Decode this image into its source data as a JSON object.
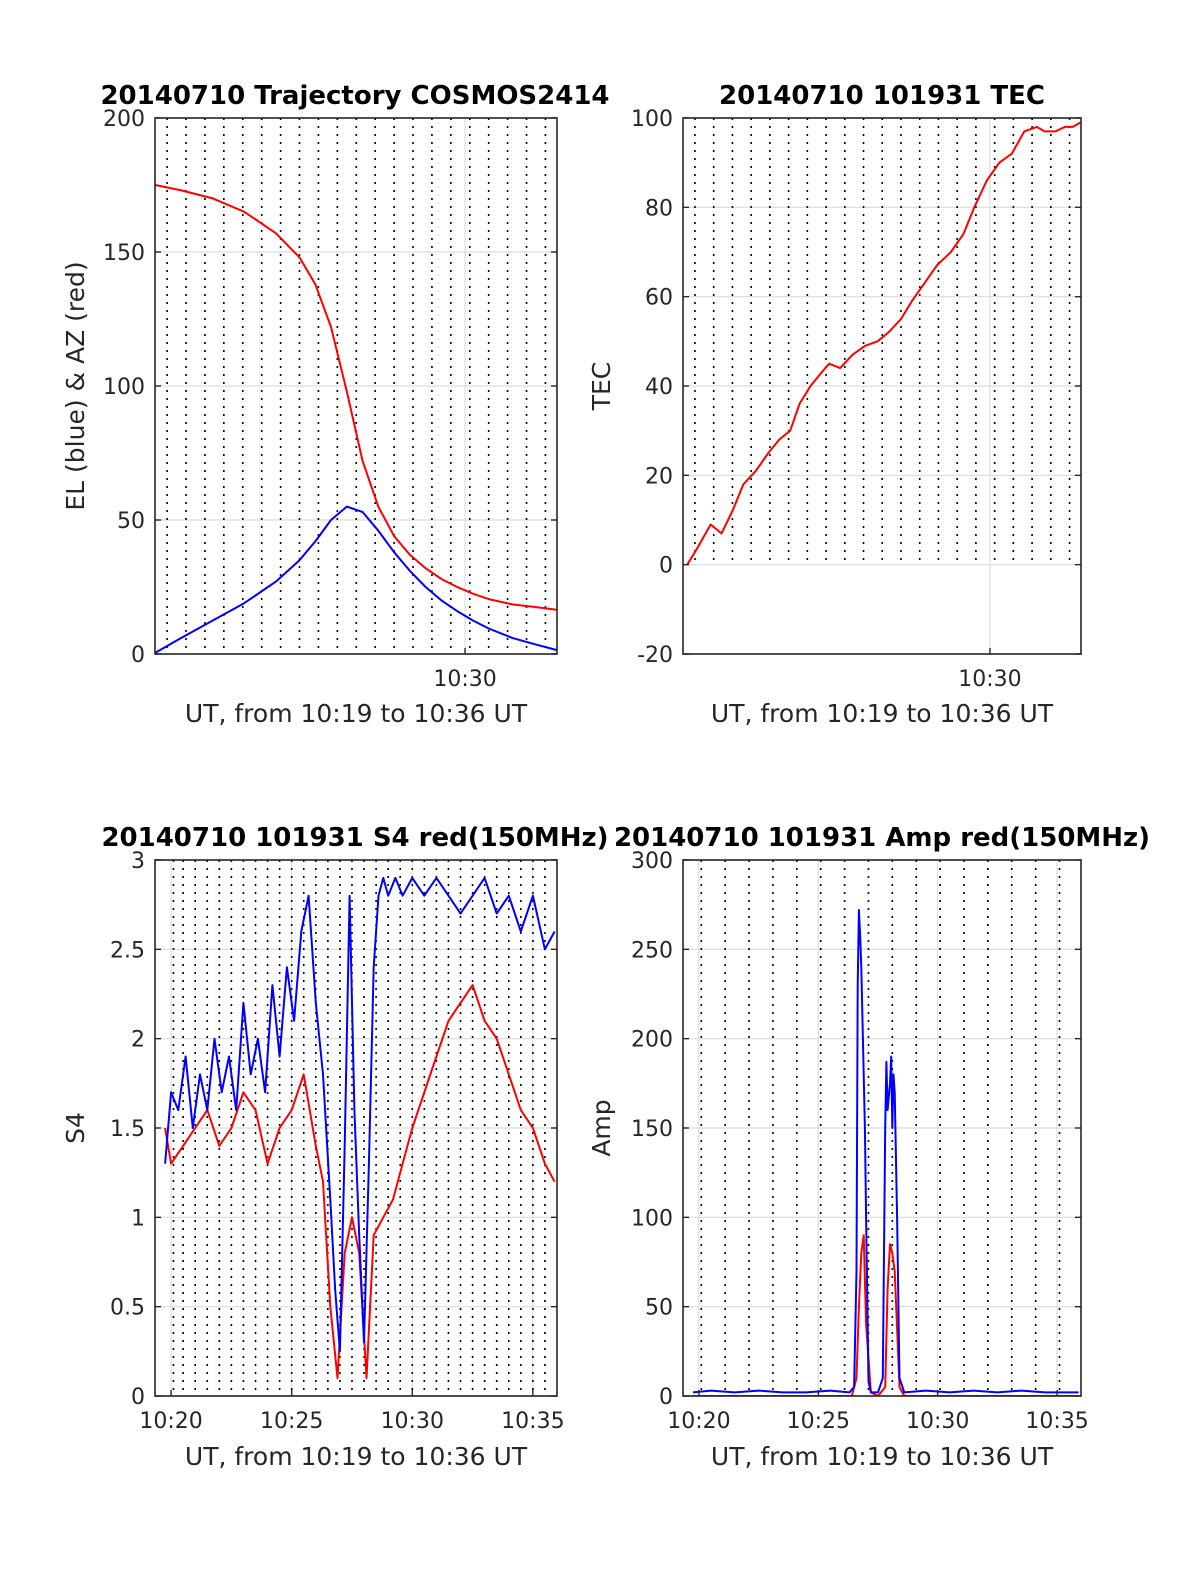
{
  "colors": {
    "red": "#ff0000",
    "blue": "#0000ff",
    "grid": "#dcdcdc",
    "dotted": "#000000",
    "axis": "#262626"
  },
  "chart_data": [
    {
      "id": "trajectory",
      "type": "line",
      "title": "20140710 Trajectory COSMOS2414",
      "xlabel": "UT, from 10:19 to 10:36 UT",
      "ylabel": "EL (blue) & AZ (red)",
      "xlim": [
        10.3333,
        35.8333
      ],
      "ylim": [
        0,
        200
      ],
      "yticks": [
        0,
        50,
        100,
        150,
        200
      ],
      "ytick_labels": [
        "0",
        "50",
        "100",
        "150",
        "200"
      ],
      "xticks": [
        30
      ],
      "xtick_labels": [
        "10:30"
      ],
      "grid": true,
      "dotted_vlines": [
        11.1,
        12.3,
        13.5,
        14.7,
        15.9,
        17.1,
        18.3,
        19.5,
        20.7,
        21.9,
        23.1,
        24.3,
        25.5,
        26.7,
        27.9,
        29.1,
        30.3,
        31.5,
        32.7,
        33.9,
        35.1
      ],
      "series": [
        {
          "color": "red",
          "x": [
            10.35,
            12.0,
            14.0,
            16.0,
            18.0,
            19.5,
            20.5,
            21.5,
            22.5,
            23.5,
            24.5,
            25.5,
            26.5,
            27.5,
            28.5,
            29.5,
            30.5,
            31.5,
            33.0,
            34.5,
            35.8
          ],
          "y": [
            175,
            173,
            170,
            165,
            157,
            148,
            138,
            122,
            98,
            72,
            55,
            44,
            37,
            32,
            28,
            25,
            22.5,
            20.5,
            18.5,
            17.5,
            16.5
          ]
        },
        {
          "color": "blue",
          "x": [
            10.35,
            12.0,
            14.0,
            16.0,
            18.0,
            19.5,
            20.5,
            21.5,
            22.5,
            23.5,
            24.5,
            25.5,
            26.5,
            27.5,
            28.5,
            29.5,
            30.5,
            31.5,
            33.0,
            34.5,
            35.8
          ],
          "y": [
            0.5,
            6,
            12.5,
            19,
            27,
            35,
            42,
            50,
            55,
            53,
            46,
            38,
            31,
            25,
            20,
            16,
            12.5,
            9.5,
            6,
            3.5,
            1.5
          ]
        }
      ]
    },
    {
      "id": "tec",
      "type": "line",
      "title": "20140710 101931 TEC",
      "xlabel": "UT, from 10:19 to 10:36 UT",
      "ylabel": "TEC",
      "xlim": [
        10.3333,
        35.8333
      ],
      "ylim": [
        -20,
        100
      ],
      "yticks": [
        -20,
        0,
        20,
        40,
        60,
        80,
        100
      ],
      "ytick_labels": [
        "-20",
        "0",
        "20",
        "40",
        "60",
        "80",
        "100"
      ],
      "xticks": [
        30
      ],
      "xtick_labels": [
        "10:30"
      ],
      "grid": true,
      "dotted_vlines": [
        11.1,
        12.3,
        13.5,
        14.7,
        15.9,
        17.1,
        18.3,
        19.5,
        20.7,
        21.9,
        23.1,
        24.3,
        25.5,
        26.7,
        27.9,
        29.1,
        30.3,
        31.5,
        32.7,
        33.9,
        35.1
      ],
      "dotted_ymin": 0,
      "series": [
        {
          "color": "red",
          "x": [
            10.6,
            11.3,
            12.1,
            12.8,
            13.5,
            14.2,
            15.0,
            15.8,
            16.5,
            17.2,
            17.8,
            18.5,
            19.2,
            19.7,
            20.4,
            21.2,
            22.0,
            22.8,
            23.5,
            24.3,
            25.0,
            25.8,
            26.6,
            27.5,
            28.3,
            29.0,
            29.8,
            30.6,
            31.4,
            32.2,
            33.0,
            33.5,
            34.2,
            34.8,
            35.3,
            35.8
          ],
          "y": [
            0,
            4,
            9,
            7,
            12,
            18,
            21,
            25,
            28,
            30,
            36,
            40,
            43,
            45,
            44,
            47,
            49,
            50,
            52,
            55,
            59,
            63,
            67,
            70,
            74,
            80,
            86,
            90,
            92,
            97,
            98,
            97,
            97,
            98,
            98,
            99
          ]
        }
      ]
    },
    {
      "id": "s4",
      "type": "line",
      "title": "20140710 101931 S4 red(150MHz)",
      "xlabel": "UT, from 10:19 to 10:36 UT",
      "ylabel": "S4",
      "xlim": [
        19.3333,
        36.0
      ],
      "ylim": [
        0,
        3
      ],
      "yticks": [
        0,
        0.5,
        1,
        1.5,
        2,
        2.5,
        3
      ],
      "ytick_labels": [
        "0",
        "0.5",
        "1",
        "1.5",
        "2",
        "2.5",
        "3"
      ],
      "xticks": [
        20,
        25,
        30,
        35
      ],
      "xtick_labels": [
        "10:20",
        "10:25",
        "10:30",
        "10:35"
      ],
      "grid": true,
      "dotted_vlines": [
        20.1,
        20.5,
        21.0,
        21.5,
        22.0,
        22.5,
        23.0,
        23.5,
        24.0,
        24.5,
        25.0,
        25.5,
        26.0,
        26.5,
        27.0,
        27.5,
        28.0,
        28.5,
        29.0,
        29.5,
        30.0,
        30.5,
        31.0,
        31.5,
        32.0,
        32.5,
        33.0,
        33.5,
        34.0,
        34.5,
        35.0,
        35.5
      ],
      "series": [
        {
          "color": "red",
          "x": [
            19.75,
            20.0,
            20.5,
            21.0,
            21.5,
            22.0,
            22.5,
            23.0,
            23.5,
            24.0,
            24.5,
            25.0,
            25.5,
            26.0,
            26.3,
            26.6,
            26.9,
            27.2,
            27.5,
            27.8,
            28.1,
            28.4,
            28.8,
            29.2,
            29.6,
            30.0,
            30.5,
            31.0,
            31.5,
            32.0,
            32.5,
            33.0,
            33.5,
            34.0,
            34.5,
            35.0,
            35.5,
            35.9
          ],
          "y": [
            1.5,
            1.3,
            1.4,
            1.5,
            1.6,
            1.4,
            1.5,
            1.7,
            1.6,
            1.3,
            1.5,
            1.6,
            1.8,
            1.4,
            1.2,
            0.5,
            0.1,
            0.8,
            1.0,
            0.8,
            0.1,
            0.9,
            1.0,
            1.1,
            1.3,
            1.5,
            1.7,
            1.9,
            2.1,
            2.2,
            2.3,
            2.1,
            2.0,
            1.8,
            1.6,
            1.5,
            1.3,
            1.2
          ]
        },
        {
          "color": "blue",
          "x": [
            19.75,
            20.0,
            20.3,
            20.6,
            20.9,
            21.2,
            21.5,
            21.8,
            22.1,
            22.4,
            22.7,
            23.0,
            23.3,
            23.6,
            23.9,
            24.2,
            24.5,
            24.8,
            25.1,
            25.4,
            25.7,
            26.0,
            26.3,
            26.6,
            26.8,
            27.0,
            27.2,
            27.4,
            27.6,
            27.8,
            28.0,
            28.2,
            28.4,
            28.6,
            28.8,
            29.0,
            29.3,
            29.6,
            30.0,
            30.5,
            31.0,
            31.5,
            32.0,
            32.5,
            33.0,
            33.5,
            34.0,
            34.5,
            35.0,
            35.5,
            35.9
          ],
          "y": [
            1.3,
            1.7,
            1.6,
            1.9,
            1.5,
            1.8,
            1.6,
            2.0,
            1.7,
            1.9,
            1.6,
            2.2,
            1.8,
            2.0,
            1.7,
            2.3,
            1.9,
            2.4,
            2.1,
            2.6,
            2.8,
            2.2,
            1.8,
            1.1,
            0.6,
            0.25,
            1.4,
            2.8,
            1.6,
            0.9,
            0.3,
            1.3,
            2.4,
            2.8,
            2.9,
            2.8,
            2.9,
            2.8,
            2.9,
            2.8,
            2.9,
            2.8,
            2.7,
            2.8,
            2.9,
            2.7,
            2.8,
            2.6,
            2.8,
            2.5,
            2.6
          ]
        }
      ]
    },
    {
      "id": "amp",
      "type": "line",
      "title": "20140710 101931 Amp red(150MHz)",
      "xlabel": "UT, from 10:19 to 10:36 UT",
      "ylabel": "Amp",
      "xlim": [
        19.3333,
        36.0
      ],
      "ylim": [
        0,
        300
      ],
      "yticks": [
        0,
        50,
        100,
        150,
        200,
        250,
        300
      ],
      "ytick_labels": [
        "0",
        "50",
        "100",
        "150",
        "200",
        "250",
        "300"
      ],
      "xticks": [
        20,
        25,
        30,
        35
      ],
      "xtick_labels": [
        "10:20",
        "10:25",
        "10:30",
        "10:35"
      ],
      "grid": true,
      "dotted_vlines": [
        20.1,
        21.1,
        22.1,
        23.1,
        24.1,
        25.1,
        26.1,
        27.1,
        28.1,
        29.1,
        30.1,
        31.1,
        32.1,
        33.1,
        34.1,
        35.1
      ],
      "series": [
        {
          "color": "red",
          "x": [
            19.75,
            26.4,
            26.6,
            26.7,
            26.8,
            26.9,
            27.0,
            27.2,
            27.5,
            27.8,
            27.9,
            28.0,
            28.1,
            28.2,
            28.4,
            28.6,
            29.0,
            35.9
          ],
          "y": [
            0,
            0,
            10,
            50,
            80,
            90,
            40,
            2,
            0,
            5,
            60,
            85,
            80,
            70,
            5,
            0,
            0,
            0
          ]
        },
        {
          "color": "blue",
          "x": [
            19.75,
            20.5,
            21.5,
            22.5,
            23.5,
            24.5,
            25.5,
            26.3,
            26.5,
            26.6,
            26.65,
            26.7,
            26.75,
            26.8,
            26.85,
            26.9,
            26.95,
            27.0,
            27.1,
            27.2,
            27.5,
            27.7,
            27.8,
            27.85,
            27.9,
            28.0,
            28.05,
            28.1,
            28.15,
            28.2,
            28.3,
            28.4,
            28.6,
            29.5,
            30.5,
            31.5,
            32.5,
            33.5,
            34.5,
            35.9
          ],
          "y": [
            2,
            3,
            2,
            3,
            2,
            2,
            3,
            2,
            5,
            70,
            230,
            272,
            258,
            240,
            210,
            180,
            150,
            100,
            8,
            2,
            2,
            10,
            150,
            187,
            160,
            175,
            190,
            150,
            180,
            170,
            100,
            10,
            2,
            3,
            2,
            3,
            2,
            3,
            2,
            2
          ]
        }
      ]
    }
  ]
}
